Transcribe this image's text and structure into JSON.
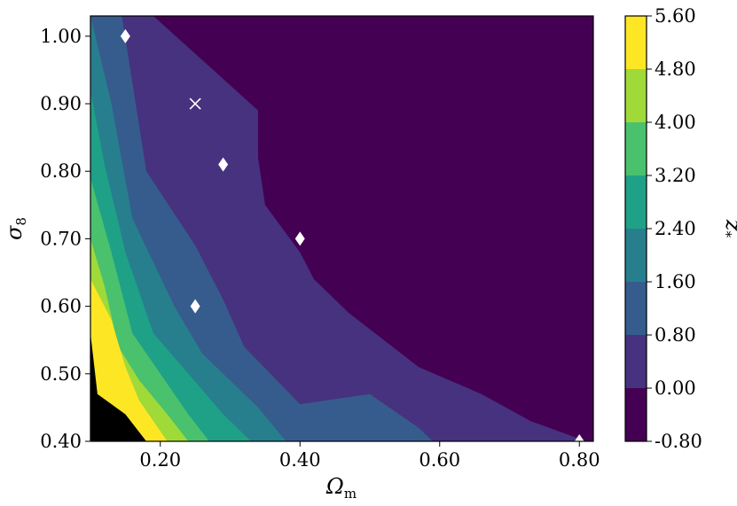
{
  "chart_data": {
    "type": "heatmap",
    "subtype": "filled-contour",
    "title": "",
    "xlabel": "Ω",
    "xlabel_sub": "m",
    "ylabel": "σ",
    "ylabel_sub": "8",
    "colorbar_label": "z",
    "colorbar_label_sub": "*",
    "xlim": [
      0.1,
      0.82
    ],
    "ylim": [
      0.4,
      1.03
    ],
    "xticks": [
      {
        "value": 0.2,
        "label": "0.20"
      },
      {
        "value": 0.4,
        "label": "0.40"
      },
      {
        "value": 0.6,
        "label": "0.60"
      },
      {
        "value": 0.8,
        "label": "0.80"
      }
    ],
    "yticks": [
      {
        "value": 0.4,
        "label": "0.40"
      },
      {
        "value": 0.5,
        "label": "0.50"
      },
      {
        "value": 0.6,
        "label": "0.60"
      },
      {
        "value": 0.7,
        "label": "0.70"
      },
      {
        "value": 0.8,
        "label": "0.80"
      },
      {
        "value": 0.9,
        "label": "0.90"
      },
      {
        "value": 1.0,
        "label": "1.00"
      }
    ],
    "levels": [
      -0.8,
      0.0,
      0.8,
      1.6,
      2.4,
      3.2,
      4.0,
      4.8,
      5.6
    ],
    "level_labels": [
      "-0.80",
      "0.00",
      "0.80",
      "1.60",
      "2.40",
      "3.20",
      "4.00",
      "4.80",
      "5.60"
    ],
    "colors": [
      "#440154",
      "#46327e",
      "#365c8d",
      "#277f8e",
      "#1fa187",
      "#4ac16d",
      "#a0da39",
      "#fde725"
    ],
    "contour_boundaries": [
      {
        "level": 0.0,
        "points": [
          [
            0.19,
            1.03
          ],
          [
            0.34,
            0.89
          ],
          [
            0.34,
            0.82
          ],
          [
            0.35,
            0.75
          ],
          [
            0.4,
            0.68
          ],
          [
            0.42,
            0.64
          ],
          [
            0.47,
            0.59
          ],
          [
            0.57,
            0.51
          ],
          [
            0.66,
            0.47
          ],
          [
            0.73,
            0.43
          ],
          [
            0.81,
            0.4
          ]
        ]
      },
      {
        "level": 0.8,
        "points": [
          [
            0.145,
            1.03
          ],
          [
            0.18,
            0.8
          ],
          [
            0.25,
            0.69
          ],
          [
            0.29,
            0.61
          ],
          [
            0.32,
            0.54
          ],
          [
            0.4,
            0.455
          ],
          [
            0.5,
            0.47
          ],
          [
            0.57,
            0.42
          ],
          [
            0.59,
            0.4
          ]
        ]
      },
      {
        "level": 1.6,
        "points": [
          [
            0.1,
            1.03
          ],
          [
            0.13,
            0.9
          ],
          [
            0.16,
            0.73
          ],
          [
            0.22,
            0.6
          ],
          [
            0.26,
            0.53
          ],
          [
            0.34,
            0.45
          ],
          [
            0.38,
            0.4
          ]
        ]
      },
      {
        "level": 2.4,
        "points": [
          [
            0.1,
            0.92
          ],
          [
            0.12,
            0.81
          ],
          [
            0.15,
            0.68
          ],
          [
            0.19,
            0.56
          ],
          [
            0.24,
            0.5
          ],
          [
            0.29,
            0.44
          ],
          [
            0.33,
            0.4
          ]
        ]
      },
      {
        "level": 3.2,
        "points": [
          [
            0.1,
            0.79
          ],
          [
            0.13,
            0.68
          ],
          [
            0.16,
            0.56
          ],
          [
            0.2,
            0.5
          ],
          [
            0.24,
            0.44
          ],
          [
            0.27,
            0.4
          ]
        ]
      },
      {
        "level": 4.0,
        "points": [
          [
            0.1,
            0.7
          ],
          [
            0.12,
            0.63
          ],
          [
            0.14,
            0.54
          ],
          [
            0.17,
            0.49
          ],
          [
            0.21,
            0.44
          ],
          [
            0.24,
            0.4
          ]
        ]
      },
      {
        "level": 4.8,
        "points": [
          [
            0.1,
            0.64
          ],
          [
            0.13,
            0.58
          ],
          [
            0.15,
            0.51
          ],
          [
            0.17,
            0.46
          ],
          [
            0.21,
            0.4
          ]
        ]
      },
      {
        "level": 5.6,
        "points": [
          [
            0.1,
            0.56
          ],
          [
            0.11,
            0.47
          ],
          [
            0.15,
            0.44
          ],
          [
            0.18,
            0.4
          ]
        ]
      }
    ],
    "markers": [
      {
        "x": 0.15,
        "y": 1.0,
        "symbol": "diamond",
        "color": "#ffffff"
      },
      {
        "x": 0.25,
        "y": 0.9,
        "symbol": "x",
        "color": "#ffffff"
      },
      {
        "x": 0.29,
        "y": 0.81,
        "symbol": "diamond",
        "color": "#ffffff"
      },
      {
        "x": 0.4,
        "y": 0.7,
        "symbol": "diamond",
        "color": "#ffffff"
      },
      {
        "x": 0.25,
        "y": 0.6,
        "symbol": "diamond",
        "color": "#ffffff"
      },
      {
        "x": 0.8,
        "y": 0.4,
        "symbol": "diamond",
        "color": "#ffffff"
      }
    ],
    "grid": false,
    "colorbar_position": "right"
  }
}
